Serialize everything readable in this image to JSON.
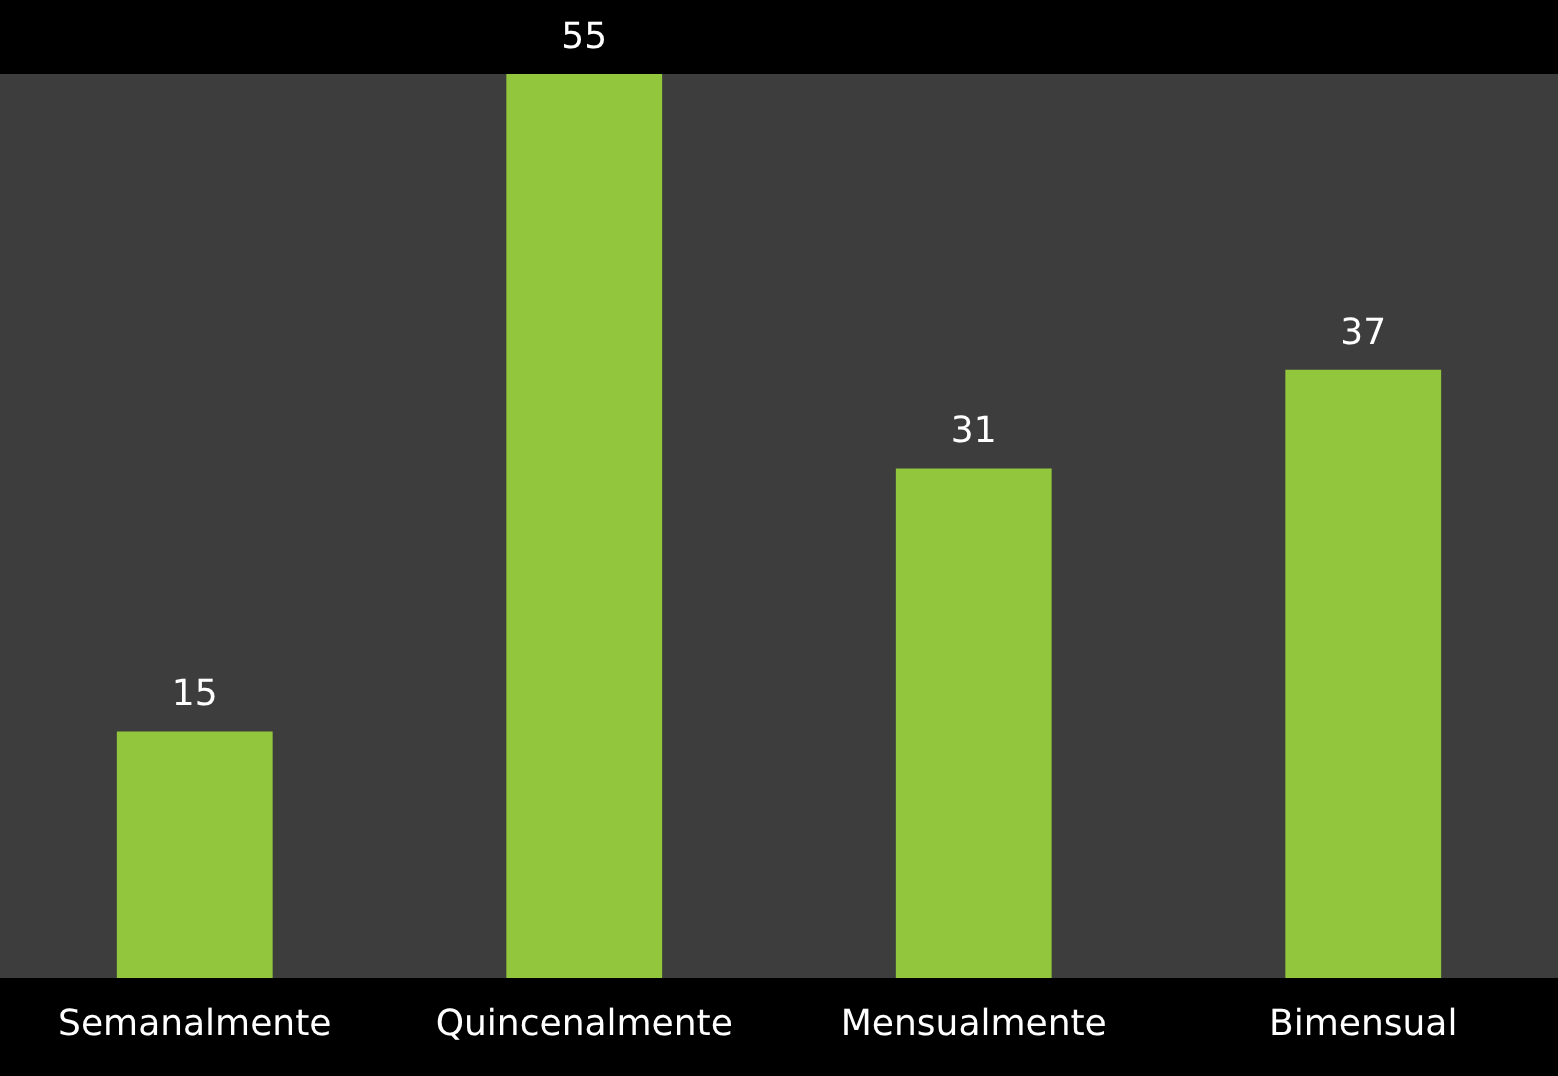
{
  "chart_data": {
    "type": "bar",
    "categories": [
      "Semanalmente",
      "Quincenalmente",
      "Mensualmente",
      "Bimensual"
    ],
    "values": [
      15,
      55,
      31,
      37
    ],
    "color": "#92c73d",
    "data_labels": true
  }
}
